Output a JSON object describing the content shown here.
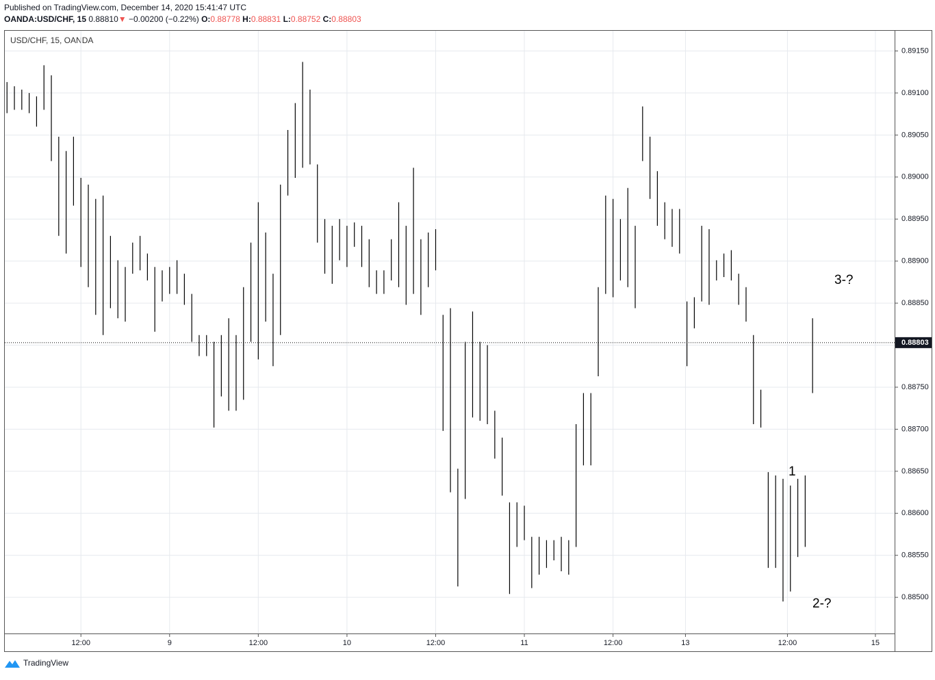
{
  "header": {
    "published": "Published on TradingView.com, December 14, 2020 15:41:47 UTC",
    "symbol": "OANDA:USD/CHF, 15",
    "last": "0.88810",
    "arrow": "▼",
    "change": "−0.00200 (−0.22%)",
    "o_label": "O:",
    "o": "0.88778",
    "h_label": "H:",
    "h": "0.88831",
    "l_label": "L:",
    "l": "0.88752",
    "c_label": "C:",
    "c": "0.88803"
  },
  "chart_data": {
    "type": "ohlc-range",
    "title": "USD/CHF, 15, OANDA",
    "color": "#000000",
    "x": [
      2,
      3,
      4,
      5,
      6,
      7,
      8,
      9,
      10,
      11,
      12,
      13,
      14,
      15,
      16,
      17,
      18,
      19,
      20,
      21,
      22,
      23,
      24,
      25,
      26,
      27,
      28,
      29,
      30,
      31,
      32,
      33,
      34,
      35,
      36,
      37,
      38,
      39,
      40,
      41,
      42,
      43,
      44,
      45,
      46,
      47,
      48,
      49,
      50,
      51,
      52,
      53,
      54,
      55,
      56,
      57,
      58,
      59,
      60,
      61,
      62,
      63,
      64,
      65,
      66,
      67,
      68,
      69,
      70,
      71,
      72,
      73,
      74,
      75,
      76,
      77,
      78,
      79,
      80,
      81,
      82,
      83,
      84,
      85,
      86,
      87,
      88,
      89,
      90,
      91,
      92,
      93,
      94,
      95,
      96,
      97,
      98,
      99,
      100,
      101,
      102,
      103,
      104,
      105,
      106,
      107,
      108,
      109,
      110,
      111
    ],
    "high": [
      0.89113,
      0.89108,
      0.89104,
      0.891,
      0.89096,
      0.89133,
      0.89121,
      0.89048,
      0.89031,
      0.89048,
      0.88999,
      0.88991,
      0.88974,
      0.88978,
      0.8893,
      0.88901,
      0.88893,
      0.88922,
      0.8893,
      0.88909,
      0.88893,
      0.88889,
      0.88893,
      0.88901,
      0.88885,
      0.88861,
      0.88812,
      0.88812,
      0.88804,
      0.88812,
      0.88832,
      0.88812,
      0.88869,
      0.88922,
      0.8897,
      0.88934,
      0.88885,
      0.88991,
      0.89056,
      0.89088,
      0.89137,
      0.89104,
      0.89015,
      0.8895,
      0.88942,
      0.8895,
      0.88942,
      0.88946,
      0.88942,
      0.88926,
      0.88889,
      0.88889,
      0.88926,
      0.8897,
      0.88942,
      0.89011,
      0.88926,
      0.88934,
      0.88938,
      0.88836,
      0.88844,
      0.88653,
      0.88804,
      0.8884,
      0.88804,
      0.888,
      0.88722,
      0.8869,
      0.88613,
      0.88613,
      0.88609,
      0.88572,
      0.88572,
      0.88568,
      0.88568,
      0.88572,
      0.88568,
      0.88706,
      0.88743,
      0.88743,
      0.88869,
      0.88978,
      0.88974,
      0.8895,
      0.88987,
      0.88942,
      0.89084,
      0.89048,
      0.89007,
      0.8897,
      0.88962,
      0.88962,
      0.88852,
      0.88857,
      0.88942,
      0.88938,
      0.88901,
      0.88909,
      0.88913,
      0.88885,
      0.88869,
      0.88812,
      0.88747,
      0.88649,
      0.88645,
      0.88641,
      0.88633,
      0.88641,
      0.88645,
      0.88832
    ],
    "low": [
      0.89076,
      0.8908,
      0.8908,
      0.89076,
      0.8906,
      0.8908,
      0.89019,
      0.8893,
      0.88909,
      0.88966,
      0.88893,
      0.88869,
      0.88836,
      0.88812,
      0.88844,
      0.88832,
      0.88828,
      0.88885,
      0.88889,
      0.88877,
      0.88816,
      0.88852,
      0.88861,
      0.88861,
      0.88848,
      0.88804,
      0.88787,
      0.88787,
      0.88702,
      0.88739,
      0.88722,
      0.88722,
      0.88735,
      0.88804,
      0.88783,
      0.88828,
      0.88775,
      0.88812,
      0.88978,
      0.88999,
      0.89011,
      0.89015,
      0.88922,
      0.88885,
      0.88873,
      0.88901,
      0.88893,
      0.88917,
      0.88893,
      0.88869,
      0.88861,
      0.88861,
      0.88877,
      0.88869,
      0.88848,
      0.88861,
      0.88836,
      0.88869,
      0.88889,
      0.88698,
      0.88625,
      0.88513,
      0.88617,
      0.88714,
      0.8871,
      0.88706,
      0.88665,
      0.88621,
      0.88504,
      0.8856,
      0.88568,
      0.88511,
      0.88527,
      0.88535,
      0.88544,
      0.88531,
      0.88527,
      0.8856,
      0.88657,
      0.88657,
      0.88763,
      0.88861,
      0.88857,
      0.88877,
      0.88869,
      0.88844,
      0.89019,
      0.88974,
      0.88942,
      0.88926,
      0.88917,
      0.88909,
      0.88775,
      0.8882,
      0.88852,
      0.88848,
      0.88877,
      0.88881,
      0.88877,
      0.88848,
      0.88828,
      0.88706,
      0.88702,
      0.88535,
      0.88535,
      0.88495,
      0.88507,
      0.88548,
      0.8856,
      0.88743
    ],
    "xlim": [
      1.7,
      122.1
    ],
    "xticks": [
      {
        "value": 12,
        "label": "12:00"
      },
      {
        "value": 24,
        "label": "9"
      },
      {
        "value": 36,
        "label": "12:00"
      },
      {
        "value": 48,
        "label": "10"
      },
      {
        "value": 60,
        "label": "12:00"
      },
      {
        "value": 72,
        "label": "11"
      },
      {
        "value": 84,
        "label": "12:00"
      },
      {
        "value": 93.8,
        "label": "13"
      },
      {
        "value": 107.6,
        "label": "12:00"
      },
      {
        "value": 119.5,
        "label": "15"
      }
    ],
    "ylim": [
      0.88457,
      0.89174
    ],
    "yticks": [
      {
        "value": 0.8915,
        "label": "0.89150"
      },
      {
        "value": 0.891,
        "label": "0.89100"
      },
      {
        "value": 0.8905,
        "label": "0.89050"
      },
      {
        "value": 0.89,
        "label": "0.89000"
      },
      {
        "value": 0.8895,
        "label": "0.88950"
      },
      {
        "value": 0.889,
        "label": "0.88900"
      },
      {
        "value": 0.8885,
        "label": "0.88850"
      },
      {
        "value": 0.888,
        "label": "0.88800"
      },
      {
        "value": 0.8875,
        "label": "0.88750"
      },
      {
        "value": 0.887,
        "label": "0.88700"
      },
      {
        "value": 0.8865,
        "label": "0.88650"
      },
      {
        "value": 0.886,
        "label": "0.88600"
      },
      {
        "value": 0.8855,
        "label": "0.88550"
      },
      {
        "value": 0.885,
        "label": "0.88500"
      }
    ],
    "last_price": {
      "value": 0.88803,
      "label": "0.88803"
    },
    "grid": true,
    "annotations": [
      "1",
      "2-?",
      "3-?"
    ]
  },
  "footer": {
    "brand": "TradingView"
  }
}
